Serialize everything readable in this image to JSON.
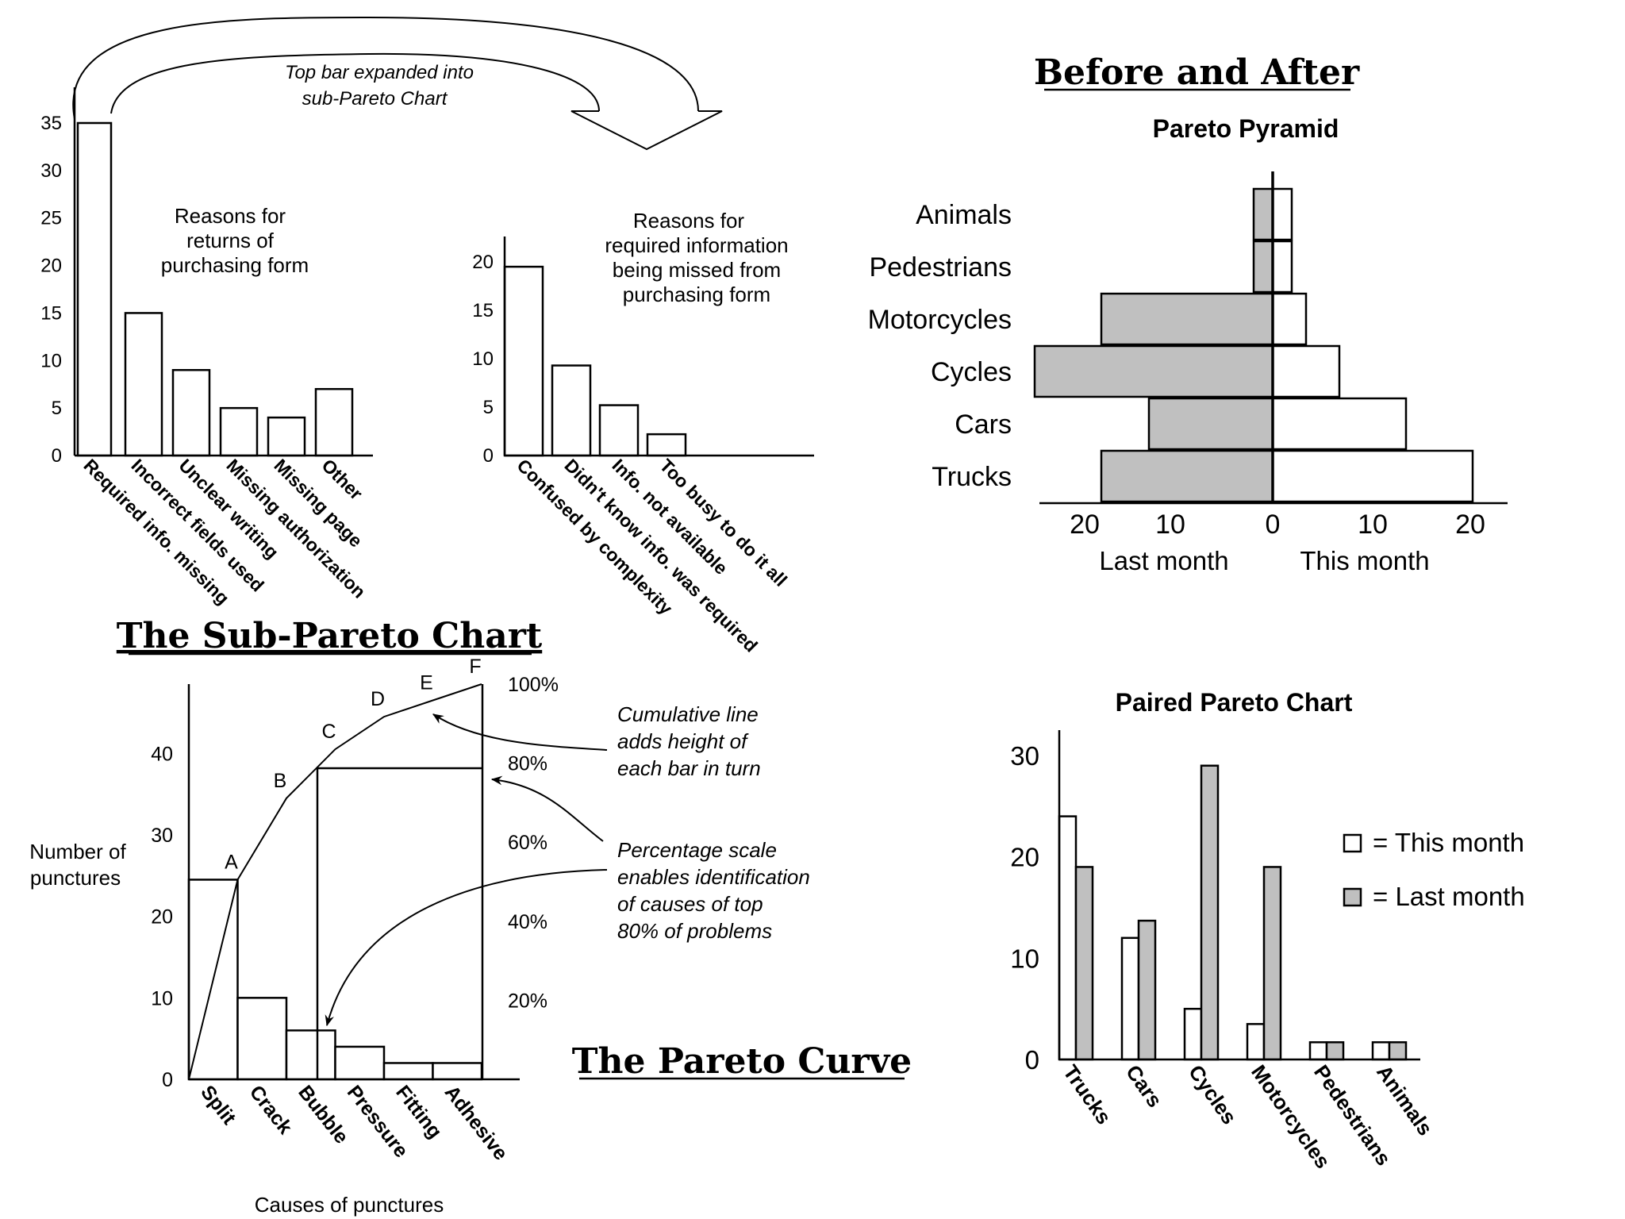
{
  "headings": {
    "before_after": "Before and After",
    "sub_pareto": "The Sub-Pareto Chart",
    "pareto_curve": "The Pareto Curve"
  },
  "annotations": {
    "top_bar_expanded": [
      "Top bar expanded into",
      "sub-Pareto Chart"
    ],
    "cumulative_line": [
      "Cumulative line",
      "adds height of",
      "each bar in turn"
    ],
    "percentage_scale": [
      "Percentage scale",
      "enables identification",
      "of causes of top",
      "80% of problems"
    ]
  },
  "chart_data": [
    {
      "type": "bar",
      "title": [
        "Reasons for",
        "returns of",
        "purchasing form"
      ],
      "categories": [
        "Required info. missing",
        "Incorrect fields used",
        "Unclear writing",
        "Missing authorization",
        "Missing page",
        "Other"
      ],
      "values": [
        35,
        15,
        9,
        5,
        4,
        7
      ],
      "yticks": [
        0,
        5,
        10,
        15,
        20,
        25,
        30,
        35
      ],
      "ylim": [
        0,
        35
      ]
    },
    {
      "type": "bar",
      "title": [
        "Reasons for",
        "required information",
        "being missed from",
        "purchasing form"
      ],
      "categories": [
        "Confused by complexity",
        "Didn't know info. was required",
        "Info. not available",
        "Too busy to do it all"
      ],
      "values": [
        19.5,
        9.3,
        5.2,
        2.2
      ],
      "yticks": [
        0,
        5,
        10,
        15,
        20
      ],
      "ylim": [
        0,
        20
      ]
    },
    {
      "type": "bar",
      "subtype": "diverging",
      "title": "Pareto Pyramid",
      "categories": [
        "Animals",
        "Pedestrians",
        "Motorcycles",
        "Cycles",
        "Cars",
        "Trucks"
      ],
      "series": [
        {
          "name": "Last month",
          "values": [
            2,
            2,
            18,
            25,
            13,
            18
          ],
          "color": "#c0c0c0"
        },
        {
          "name": "This month",
          "values": [
            2,
            2,
            3.5,
            7,
            14,
            21
          ],
          "color": "#ffffff"
        }
      ],
      "xticks": [
        "20",
        "10",
        "0",
        "10",
        "20"
      ]
    },
    {
      "type": "bar",
      "subtype": "pareto",
      "xlabel": "Causes of punctures",
      "ylabel": [
        "Number of",
        "punctures"
      ],
      "categories": [
        "Split",
        "Crack",
        "Bubble",
        "Pressure",
        "Fitting",
        "Adhesive"
      ],
      "values": [
        24.5,
        10,
        6,
        4,
        2,
        2
      ],
      "cumulative_points": [
        "A",
        "B",
        "C",
        "D",
        "E",
        "F"
      ],
      "cumulative": [
        24.5,
        34.5,
        40.5,
        44.5,
        46.5,
        48.5
      ],
      "yticks": [
        0,
        10,
        20,
        30,
        40
      ],
      "pct_ticks": [
        "20%",
        "40%",
        "60%",
        "80%",
        "100%"
      ],
      "ylim": [
        0,
        48.5
      ]
    },
    {
      "type": "bar",
      "title": "Paired Pareto Chart",
      "categories": [
        "Trucks",
        "Cars",
        "Cycles",
        "Motorcycles",
        "Pedestrians",
        "Animals"
      ],
      "series": [
        {
          "name": "This month",
          "values": [
            24,
            12,
            5,
            3.5,
            1.7,
            1.7
          ],
          "color": "#ffffff"
        },
        {
          "name": "Last month",
          "values": [
            19,
            13.7,
            29,
            19,
            1.7,
            1.7
          ],
          "color": "#c0c0c0"
        }
      ],
      "legend": [
        "= This month",
        "= Last month"
      ],
      "legend_position": "right",
      "yticks": [
        0,
        10,
        20,
        30
      ],
      "ylim": [
        0,
        30
      ]
    }
  ]
}
